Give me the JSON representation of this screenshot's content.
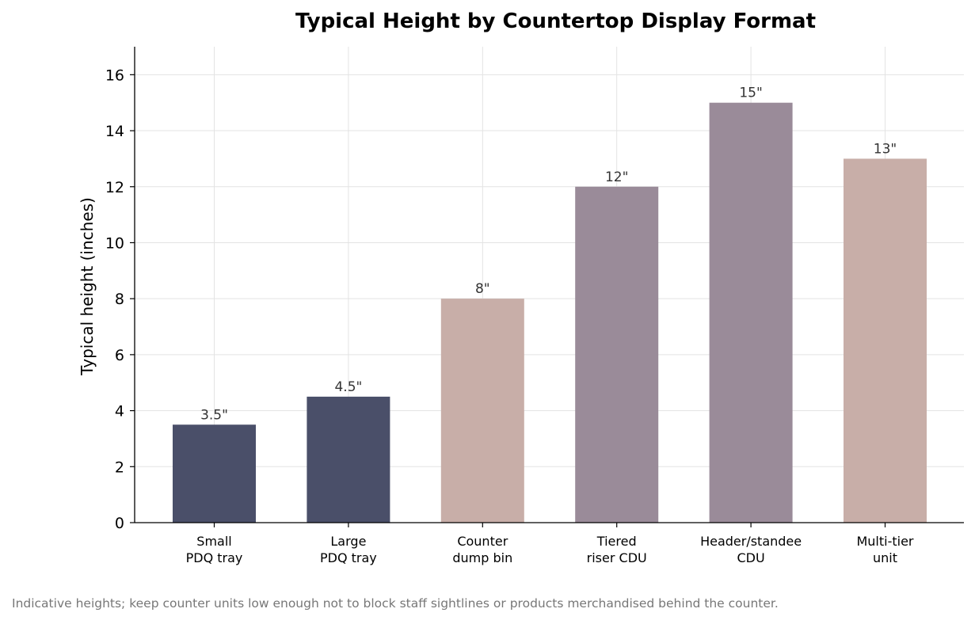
{
  "chart_data": {
    "type": "bar",
    "title": "Typical Height by Countertop Display Format",
    "xlabel": "",
    "ylabel": "Typical height (inches)",
    "ylim": [
      0,
      17
    ],
    "yticks": [
      0,
      2,
      4,
      6,
      8,
      10,
      12,
      14,
      16
    ],
    "grid": true,
    "categories": [
      [
        "Small",
        "PDQ tray"
      ],
      [
        "Large",
        "PDQ tray"
      ],
      [
        "Counter",
        "dump bin"
      ],
      [
        "Tiered",
        "riser CDU"
      ],
      [
        "Header/standee",
        "CDU"
      ],
      [
        "Multi-tier",
        "unit"
      ]
    ],
    "values": [
      3.5,
      4.5,
      8,
      12,
      15,
      13
    ],
    "data_labels": [
      "3.5\"",
      "4.5\"",
      "8\"",
      "12\"",
      "15\"",
      "13\""
    ],
    "colors": [
      "#4a4f69",
      "#4a4f69",
      "#c8aea8",
      "#9a8b99",
      "#9a8b99",
      "#c8aea8"
    ]
  },
  "footnote": "Indicative heights; keep counter units low enough not to block staff sightlines or products merchandised behind the counter."
}
